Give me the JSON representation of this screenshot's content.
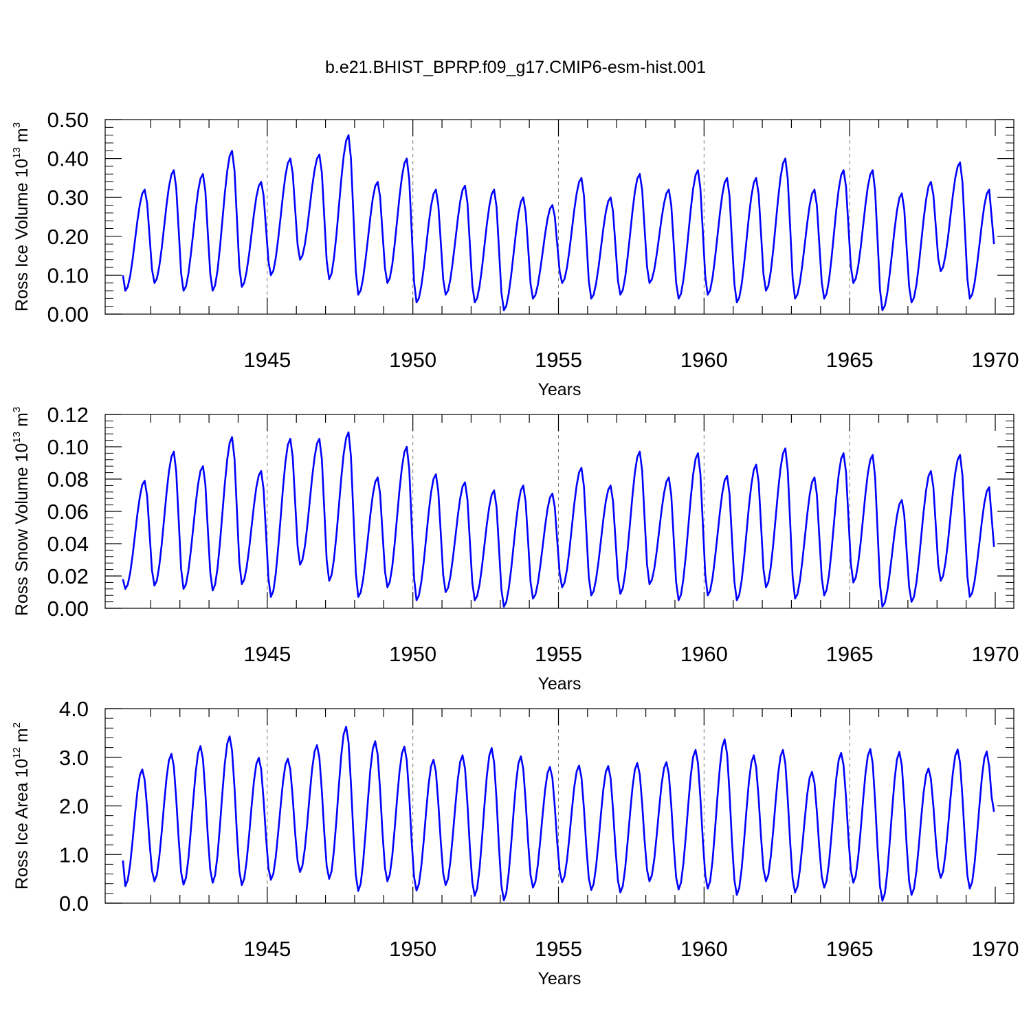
{
  "title": "b.e21.BHIST_BPRP.f09_g17.CMIP6-esm-hist.001",
  "colors": {
    "series": "#0000ff",
    "axis": "#000000",
    "grid": "#777777"
  },
  "chart_data": [
    {
      "type": "line",
      "xlabel": "Years",
      "ylabel": {
        "prefix": "Ross Ice Volume 10",
        "sup1": "13",
        "mid": " m",
        "sup2": "3"
      },
      "xlim": [
        1940.0,
        1970.0
      ],
      "ylim": [
        0.0,
        0.5
      ],
      "xticks": [
        1945,
        1950,
        1955,
        1960,
        1965,
        1970
      ],
      "xtick_labels": [
        "1945",
        "1950",
        "1955",
        "1960",
        "1965",
        "1970"
      ],
      "yticks": [
        0.0,
        0.1,
        0.2,
        0.3,
        0.4,
        0.5
      ],
      "ytick_labels": [
        "0.00",
        "0.10",
        "0.20",
        "0.30",
        "0.40",
        "0.50"
      ],
      "grid": "vertical dashed lines at labeled year ticks",
      "series": [
        {
          "peak_month": 10,
          "trough_month": 2,
          "years": [
            1940,
            1941,
            1942,
            1943,
            1944,
            1945,
            1946,
            1947,
            1948,
            1949,
            1950,
            1951,
            1952,
            1953,
            1954,
            1955,
            1956,
            1957,
            1958,
            1959,
            1960,
            1961,
            1962,
            1963,
            1964,
            1965,
            1966,
            1967,
            1968,
            1969
          ],
          "maxima": [
            0.32,
            0.37,
            0.36,
            0.42,
            0.34,
            0.4,
            0.41,
            0.46,
            0.34,
            0.4,
            0.32,
            0.33,
            0.32,
            0.3,
            0.28,
            0.35,
            0.3,
            0.36,
            0.32,
            0.37,
            0.35,
            0.35,
            0.4,
            0.32,
            0.37,
            0.37,
            0.31,
            0.34,
            0.39,
            0.32
          ],
          "minima": [
            0.06,
            0.08,
            0.06,
            0.06,
            0.07,
            0.1,
            0.14,
            0.09,
            0.05,
            0.08,
            0.03,
            0.05,
            0.03,
            0.01,
            0.04,
            0.08,
            0.04,
            0.05,
            0.08,
            0.04,
            0.05,
            0.03,
            0.06,
            0.04,
            0.04,
            0.08,
            0.01,
            0.03,
            0.11,
            0.04
          ],
          "start_value": 0.1,
          "end_value": 0.18
        }
      ]
    },
    {
      "type": "line",
      "xlabel": "Years",
      "ylabel": {
        "prefix": "Ross Snow Volume 10",
        "sup1": "13",
        "mid": " m",
        "sup2": "3"
      },
      "xlim": [
        1940.0,
        1970.0
      ],
      "ylim": [
        0.0,
        0.12
      ],
      "xticks": [
        1945,
        1950,
        1955,
        1960,
        1965,
        1970
      ],
      "xtick_labels": [
        "1945",
        "1950",
        "1955",
        "1960",
        "1965",
        "1970"
      ],
      "yticks": [
        0.0,
        0.02,
        0.04,
        0.06,
        0.08,
        0.1,
        0.12
      ],
      "ytick_labels": [
        "0.00",
        "0.02",
        "0.04",
        "0.06",
        "0.08",
        "0.10",
        "0.12"
      ],
      "grid": "vertical dashed lines at labeled year ticks",
      "series": [
        {
          "peak_month": 10,
          "trough_month": 2,
          "years": [
            1940,
            1941,
            1942,
            1943,
            1944,
            1945,
            1946,
            1947,
            1948,
            1949,
            1950,
            1951,
            1952,
            1953,
            1954,
            1955,
            1956,
            1957,
            1958,
            1959,
            1960,
            1961,
            1962,
            1963,
            1964,
            1965,
            1966,
            1967,
            1968,
            1969
          ],
          "maxima": [
            0.079,
            0.097,
            0.088,
            0.106,
            0.085,
            0.105,
            0.105,
            0.109,
            0.081,
            0.1,
            0.083,
            0.078,
            0.073,
            0.076,
            0.071,
            0.087,
            0.076,
            0.097,
            0.081,
            0.096,
            0.082,
            0.089,
            0.099,
            0.081,
            0.096,
            0.095,
            0.067,
            0.085,
            0.095,
            0.075
          ],
          "minima": [
            0.012,
            0.014,
            0.012,
            0.011,
            0.015,
            0.007,
            0.027,
            0.017,
            0.007,
            0.013,
            0.005,
            0.01,
            0.005,
            0.001,
            0.006,
            0.013,
            0.008,
            0.009,
            0.015,
            0.005,
            0.008,
            0.005,
            0.013,
            0.006,
            0.008,
            0.016,
            0.001,
            0.004,
            0.017,
            0.007
          ],
          "start_value": 0.018,
          "end_value": 0.038
        }
      ]
    },
    {
      "type": "line",
      "xlabel": "Years",
      "ylabel": {
        "prefix": "Ross Ice Area 10",
        "sup1": "12",
        "mid": " m",
        "sup2": "2"
      },
      "xlim": [
        1940.0,
        1970.0
      ],
      "ylim": [
        0.0,
        4.0
      ],
      "xticks": [
        1945,
        1950,
        1955,
        1960,
        1965,
        1970
      ],
      "xtick_labels": [
        "1945",
        "1950",
        "1955",
        "1960",
        "1965",
        "1970"
      ],
      "yticks": [
        0.0,
        1.0,
        2.0,
        3.0,
        4.0
      ],
      "ytick_labels": [
        "0.0",
        "1.0",
        "2.0",
        "3.0",
        "4.0"
      ],
      "grid": "vertical dashed lines at labeled year ticks",
      "series": [
        {
          "peak_month": 9,
          "trough_month": 2,
          "years": [
            1940,
            1941,
            1942,
            1943,
            1944,
            1945,
            1946,
            1947,
            1948,
            1949,
            1950,
            1951,
            1952,
            1953,
            1954,
            1955,
            1956,
            1957,
            1958,
            1959,
            1960,
            1961,
            1962,
            1963,
            1964,
            1965,
            1966,
            1967,
            1968,
            1969
          ],
          "maxima": [
            2.75,
            3.07,
            3.23,
            3.43,
            2.99,
            2.97,
            3.25,
            3.63,
            3.33,
            3.22,
            2.95,
            3.04,
            3.19,
            3.02,
            2.8,
            2.83,
            2.82,
            2.88,
            2.9,
            3.15,
            3.37,
            3.04,
            3.15,
            2.7,
            3.09,
            3.17,
            3.11,
            2.77,
            3.16,
            3.12
          ],
          "minima": [
            0.35,
            0.45,
            0.38,
            0.42,
            0.37,
            0.48,
            0.64,
            0.5,
            0.25,
            0.45,
            0.26,
            0.37,
            0.15,
            0.06,
            0.32,
            0.43,
            0.27,
            0.22,
            0.45,
            0.28,
            0.3,
            0.17,
            0.45,
            0.22,
            0.32,
            0.42,
            0.05,
            0.17,
            0.52,
            0.3
          ],
          "start_value": 0.88,
          "end_value": 1.88
        }
      ]
    }
  ]
}
